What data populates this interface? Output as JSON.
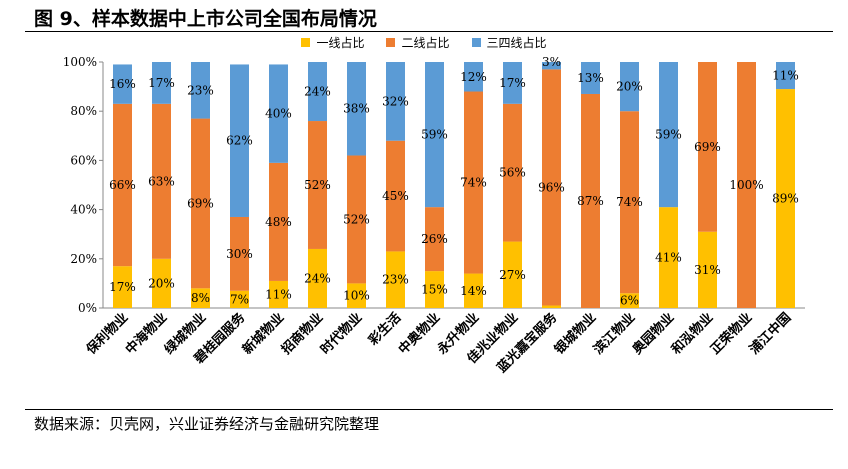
{
  "title": "图 9、样本数据中上市公司全国布局情况",
  "source": "数据来源：贝壳网，兴业证券经济与金融研究院整理",
  "colors": {
    "tier1": "#FFC000",
    "tier2": "#ED7D31",
    "tier34": "#5B9BD5"
  },
  "chart_data": {
    "type": "bar",
    "stacked": true,
    "categories": [
      "保利物业",
      "中海物业",
      "绿城物业",
      "碧桂园服务",
      "新城物业",
      "招商物业",
      "时代物业",
      "彩生活",
      "中奥物业",
      "永升物业",
      "佳兆业物业",
      "蓝光嘉宝服务",
      "银城物业",
      "滨江物业",
      "奥园物业",
      "和泓物业",
      "正荣物业",
      "浦江中国"
    ],
    "series": [
      {
        "name": "一线占比",
        "values": [
          17,
          20,
          8,
          7,
          11,
          24,
          10,
          23,
          15,
          14,
          27,
          1,
          0,
          6,
          41,
          31,
          0,
          89
        ],
        "labels": [
          "17%",
          "20%",
          "8%",
          "7%",
          "11%",
          "24%",
          "10%",
          "23%",
          "15%",
          "14%",
          "27%",
          "1%",
          "",
          "6%",
          "41%",
          "31%",
          "",
          "89%"
        ]
      },
      {
        "name": "二线占比",
        "values": [
          66,
          63,
          69,
          30,
          48,
          52,
          52,
          45,
          26,
          74,
          56,
          96,
          87,
          74,
          0,
          69,
          100,
          0
        ],
        "labels": [
          "66%",
          "63%",
          "69%",
          "30%",
          "48%",
          "52%",
          "52%",
          "45%",
          "26%",
          "74%",
          "56%",
          "96%",
          "87%",
          "74%",
          "",
          "69%",
          "100%",
          ""
        ]
      },
      {
        "name": "三四线占比",
        "values": [
          16,
          17,
          23,
          62,
          40,
          24,
          38,
          32,
          59,
          12,
          17,
          3,
          13,
          20,
          59,
          0,
          0,
          11
        ],
        "labels": [
          "16%",
          "17%",
          "23%",
          "62%",
          "40%",
          "24%",
          "38%",
          "32%",
          "59%",
          "12%",
          "17%",
          "3%",
          "13%",
          "20%",
          "59%",
          "",
          "",
          "11%"
        ]
      }
    ],
    "y_ticks": [
      "0%",
      "20%",
      "40%",
      "60%",
      "80%",
      "100%"
    ],
    "ylim": [
      0,
      100
    ],
    "legend_position": "top",
    "grid": false
  }
}
